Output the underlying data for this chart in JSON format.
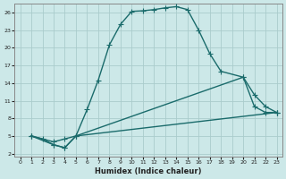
{
  "xlabel": "Humidex (Indice chaleur)",
  "bg_color": "#cce8e8",
  "grid_color": "#aacccc",
  "line_color": "#1a6b6b",
  "xlim": [
    -0.5,
    23.5
  ],
  "ylim": [
    1.5,
    27.5
  ],
  "xticks": [
    0,
    1,
    2,
    3,
    4,
    5,
    6,
    7,
    8,
    9,
    10,
    11,
    12,
    13,
    14,
    15,
    16,
    17,
    18,
    19,
    20,
    21,
    22,
    23
  ],
  "yticks": [
    2,
    5,
    8,
    11,
    14,
    17,
    20,
    23,
    26
  ],
  "series1_x": [
    1,
    2,
    3,
    4,
    5,
    6,
    7,
    8,
    9,
    10,
    11,
    12,
    13,
    14,
    15,
    16,
    17,
    18,
    20,
    21,
    22,
    23
  ],
  "series1_y": [
    5,
    4.5,
    3.5,
    3,
    5,
    9.5,
    14.5,
    20.5,
    24,
    26.2,
    26.3,
    26.5,
    26.8,
    27,
    26.5,
    23,
    19,
    16,
    15,
    10,
    9,
    9
  ],
  "series2_x": [
    1,
    3,
    4,
    5,
    20,
    21,
    22,
    23
  ],
  "series2_y": [
    5,
    4,
    4.5,
    5,
    15,
    12,
    10,
    9
  ],
  "series3_x": [
    1,
    3,
    4,
    5,
    23
  ],
  "series3_y": [
    5,
    3.5,
    3,
    5,
    9
  ],
  "marker_size": 2.5,
  "line_width": 1.0
}
